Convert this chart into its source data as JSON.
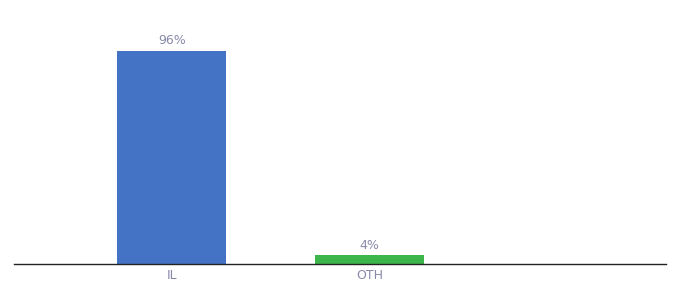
{
  "categories": [
    "IL",
    "OTH"
  ],
  "values": [
    96,
    4
  ],
  "bar_colors": [
    "#4472c4",
    "#3cb54a"
  ],
  "labels": [
    "96%",
    "4%"
  ],
  "ylim": [
    0,
    108
  ],
  "background_color": "#ffffff",
  "label_fontsize": 9,
  "tick_fontsize": 9,
  "bar_width": 0.55,
  "xlim": [
    -0.8,
    2.5
  ]
}
